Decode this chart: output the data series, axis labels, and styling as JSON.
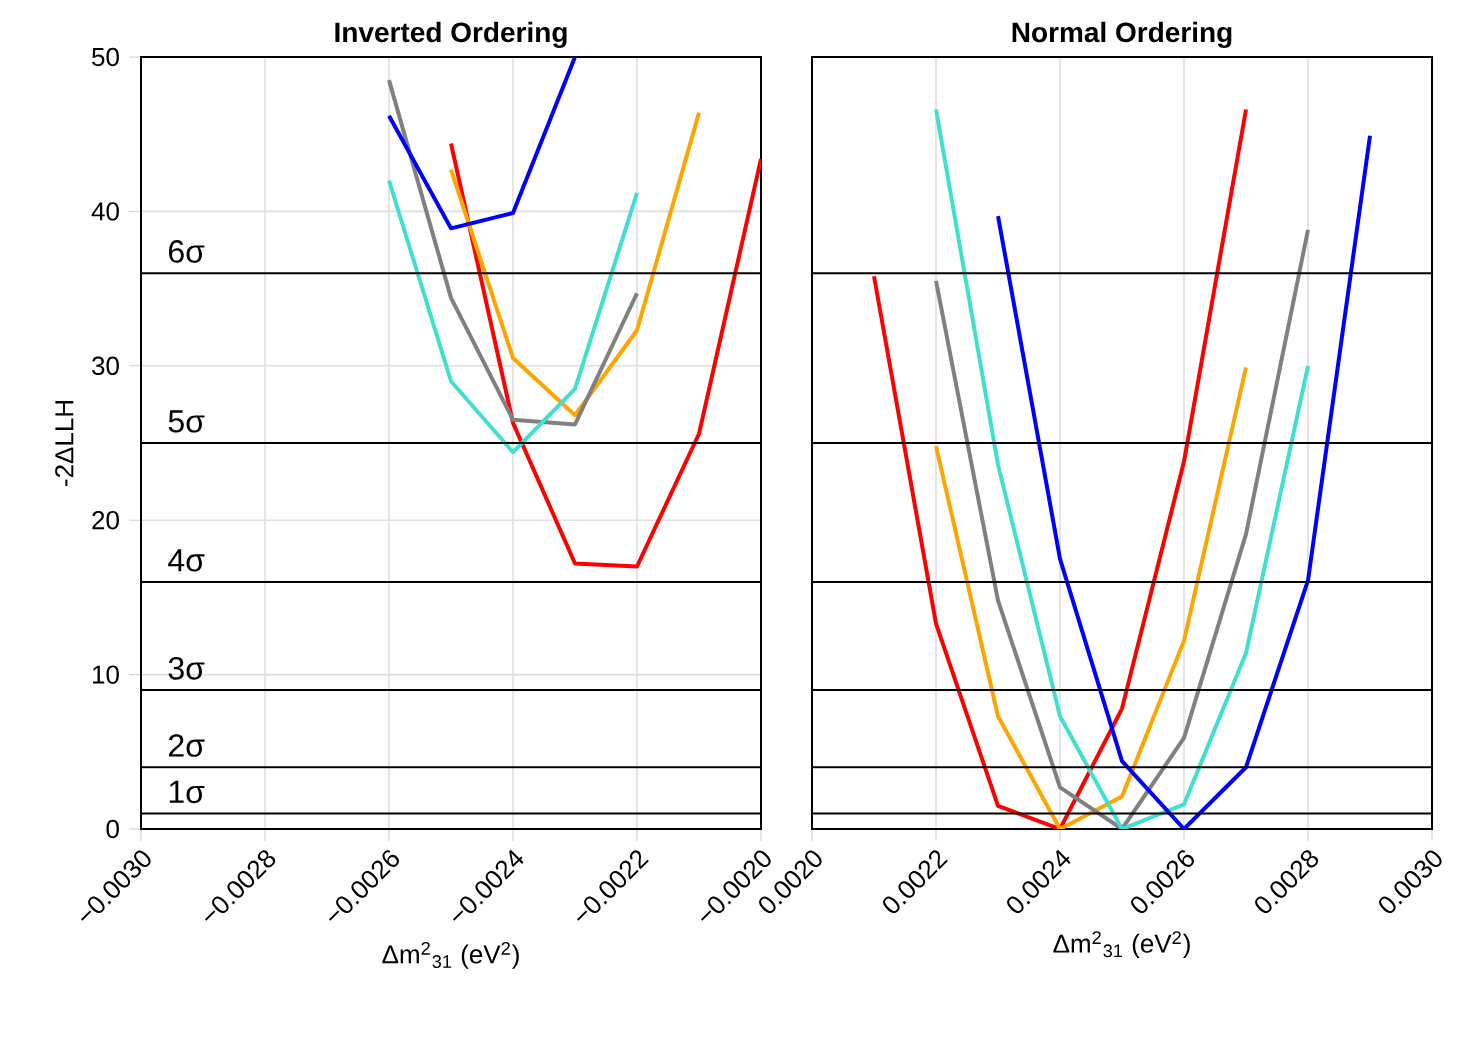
{
  "chart_data": [
    {
      "type": "line",
      "title": "Inverted Ordering",
      "xlabel": "Δm$^{2}$$_{31}$ (eV$^{2}$)",
      "ylabel": "-2ΔLLH",
      "x": [
        -0.0026,
        -0.0025,
        -0.0024,
        -0.0023,
        -0.0022,
        -0.0021,
        -0.002
      ],
      "series": [
        {
          "color": "#ff0000",
          "values": [
            null,
            44.4,
            26.3,
            17.2,
            17.0,
            25.6,
            43.4
          ]
        },
        {
          "color": "#ffa500",
          "values": [
            null,
            42.7,
            30.5,
            26.8,
            32.3,
            46.4,
            null
          ]
        },
        {
          "color": "#808080",
          "values": [
            48.5,
            34.4,
            26.5,
            26.2,
            34.7,
            null,
            null
          ]
        },
        {
          "color": "#40e0d0",
          "values": [
            42.0,
            29.0,
            24.4,
            28.5,
            41.2,
            null,
            null
          ]
        },
        {
          "color": "#0000ff",
          "values": [
            46.2,
            38.9,
            39.9,
            50,
            null,
            null,
            null
          ]
        }
      ],
      "xlim": [
        -0.003,
        -0.002
      ],
      "ylim": [
        0,
        50
      ],
      "xticks": [
        {
          "value": -0.003,
          "label": "−0.0030"
        },
        {
          "value": -0.0028,
          "label": "−0.0028"
        },
        {
          "value": -0.0026,
          "label": "−0.0026"
        },
        {
          "value": -0.0024,
          "label": "−0.0024"
        },
        {
          "value": -0.0022,
          "label": "−0.0022"
        },
        {
          "value": -0.002,
          "label": "−0.0020"
        }
      ],
      "yticks": [
        0,
        10,
        20,
        30,
        40,
        50
      ],
      "ref_lines": [
        {
          "axis": "y",
          "value": 1,
          "label": "1σ",
          "color": "#000000"
        },
        {
          "axis": "y",
          "value": 4,
          "label": "2σ",
          "color": "#000000"
        },
        {
          "axis": "y",
          "value": 9,
          "label": "3σ",
          "color": "#000000"
        },
        {
          "axis": "y",
          "value": 16,
          "label": "4σ",
          "color": "#000000"
        },
        {
          "axis": "y",
          "value": 25,
          "label": "5σ",
          "color": "#000000"
        },
        {
          "axis": "y",
          "value": 36,
          "label": "6σ",
          "color": "#000000"
        }
      ],
      "grid": true,
      "marker": "none",
      "line_style": "solid"
    },
    {
      "type": "line",
      "title": "Normal Ordering",
      "xlabel": "Δm$^{2}$$_{31}$ (eV$^{2}$)",
      "x": [
        0.0021,
        0.0022,
        0.0023,
        0.0024,
        0.0025,
        0.0026,
        0.0027,
        0.0028,
        0.0029
      ],
      "series": [
        {
          "color": "#ff0000",
          "values": [
            35.8,
            13.3,
            1.5,
            0,
            7.8,
            23.8,
            46.6,
            null,
            null
          ]
        },
        {
          "color": "#ffa500",
          "values": [
            null,
            24.8,
            7.3,
            0,
            2.1,
            12.2,
            29.9,
            null,
            null
          ]
        },
        {
          "color": "#808080",
          "values": [
            null,
            35.5,
            14.8,
            2.7,
            0,
            5.9,
            19.1,
            38.8,
            null
          ]
        },
        {
          "color": "#40e0d0",
          "values": [
            null,
            46.6,
            23.6,
            7.3,
            0,
            1.6,
            11.4,
            30.0,
            null
          ]
        },
        {
          "color": "#0000ff",
          "values": [
            null,
            null,
            39.7,
            17.5,
            4.4,
            0,
            4.0,
            16.1,
            44.9
          ]
        }
      ],
      "xlim": [
        0.002,
        0.003
      ],
      "ylim": [
        0,
        50
      ],
      "xticks": [
        {
          "value": 0.002,
          "label": "0.0020"
        },
        {
          "value": 0.0022,
          "label": "0.0022"
        },
        {
          "value": 0.0024,
          "label": "0.0024"
        },
        {
          "value": 0.0026,
          "label": "0.0026"
        },
        {
          "value": 0.0028,
          "label": "0.0028"
        },
        {
          "value": 0.003,
          "label": "0.0030"
        }
      ],
      "ref_lines": [
        {
          "axis": "y",
          "value": 1,
          "color": "#000000"
        },
        {
          "axis": "y",
          "value": 4,
          "color": "#000000"
        },
        {
          "axis": "y",
          "value": 9,
          "color": "#000000"
        },
        {
          "axis": "y",
          "value": 16,
          "color": "#000000"
        },
        {
          "axis": "y",
          "value": 25,
          "color": "#000000"
        },
        {
          "axis": "y",
          "value": 36,
          "color": "#000000"
        }
      ],
      "grid": "x",
      "marker": "none",
      "line_style": "solid",
      "tick_labels": "x"
    }
  ]
}
